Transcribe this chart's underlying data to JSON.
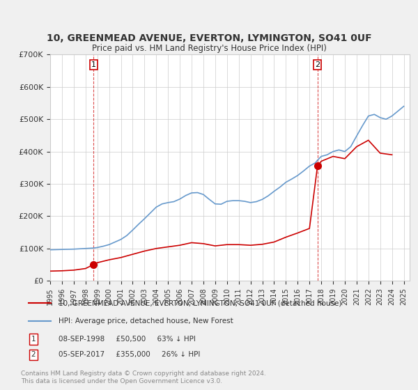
{
  "title": "10, GREENMEAD AVENUE, EVERTON, LYMINGTON, SO41 0UF",
  "subtitle": "Price paid vs. HM Land Registry's House Price Index (HPI)",
  "xlabel": "",
  "ylabel": "",
  "background_color": "#f0f0f0",
  "plot_background": "#ffffff",
  "red_color": "#cc0000",
  "blue_color": "#6699cc",
  "sale1_date": 1998.69,
  "sale1_price": 50500,
  "sale2_date": 2017.68,
  "sale2_price": 355000,
  "sale1_label": "1",
  "sale2_label": "2",
  "legend_line1": "10, GREENMEAD AVENUE, EVERTON, LYMINGTON, SO41 0UF (detached house)",
  "legend_line2": "HPI: Average price, detached house, New Forest",
  "annotation1": "08-SEP-1998     £50,500     63% ↓ HPI",
  "annotation2": "05-SEP-2017     £355,000     26% ↓ HPI",
  "footer": "Contains HM Land Registry data © Crown copyright and database right 2024.\nThis data is licensed under the Open Government Licence v3.0.",
  "ylim_max": 700000,
  "hpi_years": [
    1995.0,
    1995.5,
    1996.0,
    1996.5,
    1997.0,
    1997.5,
    1998.0,
    1998.5,
    1998.7,
    1999.0,
    1999.5,
    2000.0,
    2000.5,
    2001.0,
    2001.5,
    2002.0,
    2002.5,
    2003.0,
    2003.5,
    2004.0,
    2004.5,
    2005.0,
    2005.5,
    2006.0,
    2006.5,
    2007.0,
    2007.5,
    2008.0,
    2008.5,
    2009.0,
    2009.5,
    2010.0,
    2010.5,
    2011.0,
    2011.5,
    2012.0,
    2012.5,
    2013.0,
    2013.5,
    2014.0,
    2014.5,
    2015.0,
    2015.5,
    2016.0,
    2016.5,
    2017.0,
    2017.5,
    2017.68,
    2018.0,
    2018.5,
    2019.0,
    2019.5,
    2020.0,
    2020.5,
    2021.0,
    2021.5,
    2022.0,
    2022.5,
    2023.0,
    2023.5,
    2024.0,
    2024.5,
    2025.0
  ],
  "hpi_values": [
    96000,
    96500,
    97000,
    97500,
    98000,
    99000,
    100000,
    101000,
    101500,
    103000,
    107000,
    112000,
    120000,
    128000,
    140000,
    157000,
    175000,
    192000,
    210000,
    228000,
    238000,
    242000,
    245000,
    253000,
    264000,
    272000,
    273000,
    267000,
    252000,
    238000,
    237000,
    246000,
    248000,
    248000,
    246000,
    242000,
    245000,
    252000,
    263000,
    277000,
    290000,
    305000,
    315000,
    326000,
    340000,
    355000,
    365000,
    373000,
    385000,
    390000,
    400000,
    405000,
    400000,
    415000,
    448000,
    480000,
    510000,
    515000,
    505000,
    500000,
    510000,
    525000,
    540000
  ],
  "red_years": [
    1995.0,
    1996.0,
    1997.0,
    1998.0,
    1998.69,
    1999.0,
    2000.0,
    2001.0,
    2002.0,
    2003.0,
    2004.0,
    2005.0,
    2006.0,
    2007.0,
    2008.0,
    2009.0,
    2010.0,
    2011.0,
    2012.0,
    2013.0,
    2014.0,
    2015.0,
    2016.0,
    2017.0,
    2017.68,
    2018.0,
    2019.0,
    2020.0,
    2021.0,
    2022.0,
    2023.0,
    2024.0
  ],
  "red_values": [
    30000,
    31000,
    33000,
    38000,
    50500,
    56000,
    65000,
    72000,
    82000,
    92000,
    100000,
    105000,
    110000,
    118000,
    115000,
    108000,
    112000,
    112000,
    110000,
    113000,
    120000,
    135000,
    148000,
    162000,
    355000,
    370000,
    385000,
    378000,
    415000,
    435000,
    395000,
    390000
  ]
}
